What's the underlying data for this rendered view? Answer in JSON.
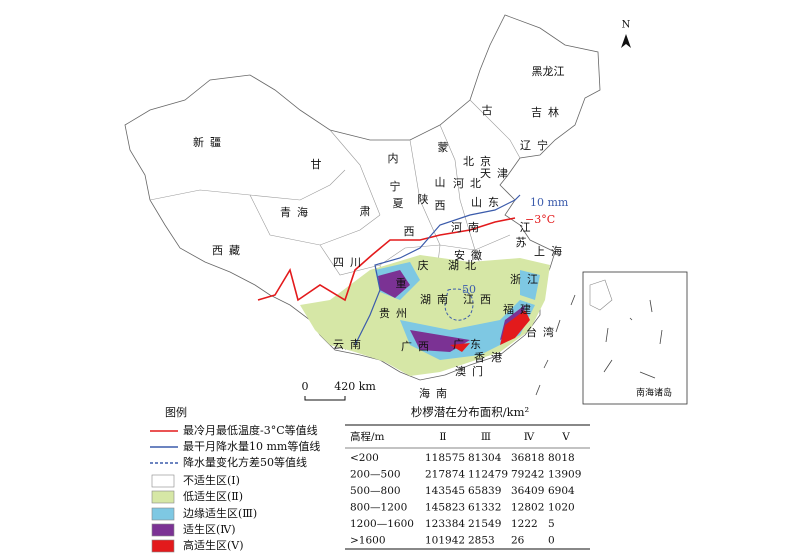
{
  "map": {
    "north": "N",
    "scale": {
      "start": "0",
      "end": "420 km"
    },
    "annotations": {
      "precip": "10 mm",
      "temp": "−3°C",
      "variance": "50"
    },
    "inset": "南海诸岛",
    "labels": [
      "黑龙江",
      "吉林",
      "辽宁",
      "古",
      "蒙",
      "内",
      "新疆",
      "甘",
      "北京",
      "天津",
      "河北",
      "山",
      "西",
      "宁",
      "夏",
      "陕",
      "肃",
      "青海",
      "山东",
      "西",
      "河南",
      "江",
      "苏",
      "西藏",
      "四川",
      "庆",
      "湖北",
      "安徽",
      "上海",
      "浙江",
      "湖南",
      "江西",
      "贵州",
      "福建",
      "云南",
      "广西",
      "广东",
      "台湾",
      "香港",
      "澳门",
      "海南",
      "重"
    ]
  },
  "legend": {
    "title": "图例",
    "items": [
      "最冷月最低温度-3°C等值线",
      "最干月降水量10 mm等值线",
      "降水量变化方差50等值线",
      "不适生区(Ⅰ)",
      "低适生区(Ⅱ)",
      "边缘适生区(Ⅲ)",
      "适生区(Ⅳ)",
      "高适生区(Ⅴ)"
    ]
  },
  "table": {
    "title": "杪椤潜在分布面积/km²",
    "header": [
      "高程/m",
      "Ⅱ",
      "Ⅲ",
      "Ⅳ",
      "Ⅴ"
    ],
    "rows": [
      [
        "<200",
        118575,
        81304,
        36818,
        8018
      ],
      [
        "200—500",
        217874,
        112479,
        79242,
        13909
      ],
      [
        "500—800",
        143545,
        65839,
        36409,
        6904
      ],
      [
        "800—1200",
        145823,
        61332,
        12802,
        1020
      ],
      [
        "1200—1600",
        123384,
        21549,
        1222,
        5
      ],
      [
        ">1600",
        101942,
        2853,
        26,
        0
      ]
    ]
  }
}
